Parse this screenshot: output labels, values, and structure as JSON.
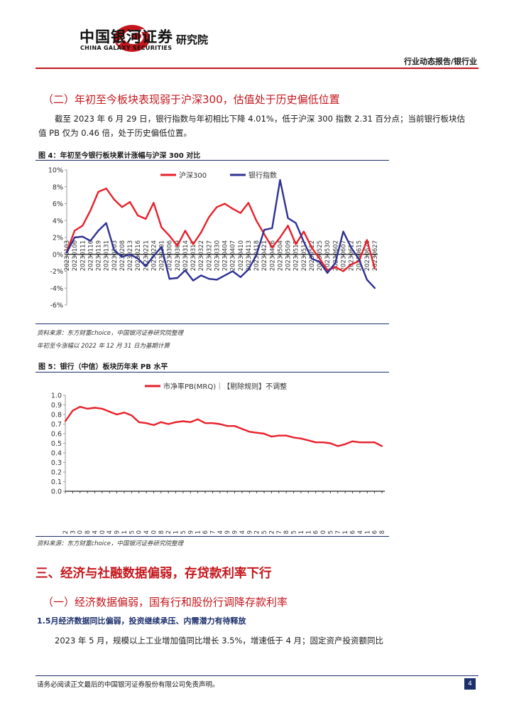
{
  "header": {
    "logo_cn": "中国银河证券",
    "logo_en": "CHINA GALAXY SECURITIES",
    "institute": "研究院",
    "report_type": "行业动态报告/银行业",
    "accent_color": "#c4161c",
    "navy_color": "#1c2f6b",
    "icon": "galaxy-logo-icon"
  },
  "section2": {
    "heading": "（二）年初至今板块表现弱于沪深300，估值处于历史偏低位置",
    "paragraph": "截至 2023 年 6 月 29 日，银行指数与年初相比下降 4.01%，低于沪深 300 指数 2.31 百分点；当前银行板块估值 PB 仅为 0.46 倍，处于历史偏低位置。"
  },
  "figure4": {
    "title": "图 4：年初至今银行板块累计涨幅与沪深 300 对比",
    "source": "资料来源：东方财富choice，中国银河证券研究院整理",
    "note": "年初至今涨幅以 2022 年 12 月 31 日为基期计算"
  },
  "figure5": {
    "title": "图 5：银行（中信）板块历年来 PB 水平",
    "source": "资料来源：东方财富choice，中国银河证券研究院整理"
  },
  "section3": {
    "heading": "三、经济与社融数据偏弱，存贷款利率下行",
    "sub_heading": "（一）经济数据偏弱，国有行和股份行调降存款利率",
    "point_heading": "1.5月经济数据同比偏弱，投资继续承压、内需潜力有待释放",
    "paragraph": "2023 年 5 月，规模以上工业增加值同比增长 3.5%，增速低于 4 月；固定资产投资额同比"
  },
  "footer": {
    "disclaimer": "请务必阅读正文最后的中国银河证券股份有限公司免责声明。",
    "page": "4"
  },
  "chart_data": [
    {
      "type": "line",
      "ylim": [
        -6,
        10
      ],
      "yticks": [
        10,
        8,
        6,
        4,
        2,
        0,
        -2,
        -4,
        -6
      ],
      "ytick_labels": [
        "10%",
        "8%",
        "6%",
        "4%",
        "2%",
        "0%",
        "-2%",
        "-4%",
        "-6%"
      ],
      "categories": [
        "20230103",
        "20230106",
        "20230111",
        "20230116",
        "20230119",
        "20230131",
        "20230203",
        "20230208",
        "20230213",
        "20230216",
        "20230221",
        "20230224",
        "20230301",
        "20230306",
        "20230309",
        "20230314",
        "20230317",
        "20230322",
        "20230327",
        "20230330",
        "20230404",
        "20230407",
        "20230410",
        "20230413",
        "20230418",
        "20230421",
        "20230426",
        "20230504",
        "20230509",
        "20230512",
        "20230517",
        "20230522",
        "20230525",
        "20230530",
        "20230602",
        "20230607",
        "20230612",
        "20230615",
        "20230620",
        "20230627"
      ],
      "series": [
        {
          "name": "沪深300",
          "color": "#e8202a",
          "values": [
            0.3,
            2.8,
            3.4,
            5.2,
            7.4,
            7.8,
            6.5,
            5.6,
            6.2,
            4.6,
            4.2,
            6.1,
            3.2,
            2.2,
            1.0,
            2.8,
            1.2,
            2.6,
            4.4,
            5.6,
            6.0,
            5.4,
            4.9,
            6.1,
            4.0,
            2.4,
            0.8,
            2.0,
            3.4,
            1.2,
            2.7,
            0.8,
            -0.5,
            -1.9,
            -1.5,
            -2.0,
            -1.2,
            -0.8,
            1.7,
            -1.7
          ]
        },
        {
          "name": "银行指数",
          "color": "#2e3192",
          "values": [
            0.2,
            2.0,
            2.1,
            1.6,
            2.8,
            3.7,
            0.5,
            -0.3,
            0.0,
            -0.5,
            -1.4,
            -0.2,
            0.9,
            -2.9,
            -2.8,
            -1.9,
            -3.1,
            -2.5,
            -2.9,
            -3.0,
            -2.5,
            -2.0,
            -2.7,
            -1.8,
            -0.1,
            2.9,
            3.1,
            8.8,
            4.3,
            3.7,
            1.5,
            -0.5,
            -0.9,
            -2.2,
            -1.0,
            2.7,
            0.8,
            -0.6,
            -3.0,
            -4.0
          ]
        }
      ]
    },
    {
      "type": "line",
      "ylim": [
        0.0,
        1.0
      ],
      "yticks": [
        1.0,
        0.9,
        0.8,
        0.7,
        0.6,
        0.5,
        0.4,
        0.3,
        0.2,
        0.1,
        0.0
      ],
      "ytick_labels": [
        "1.0",
        "0.9",
        "0.8",
        "0.7",
        "0.6",
        "0.5",
        "0.4",
        "0.3",
        "0.2",
        "0.1",
        "0.0"
      ],
      "categories": [
        "20190102",
        "20190213",
        "20190320",
        "20190428",
        "20190604",
        "20190710",
        "20190814",
        "20190919",
        "20191031",
        "20191205",
        "20200110",
        "20200224",
        "20200330",
        "20200508",
        "20200612",
        "20200721",
        "20200825",
        "20200929",
        "20201111",
        "20201216",
        "20210127",
        "20210304",
        "20210409",
        "20210519",
        "20210624",
        "20210729",
        "20210902",
        "20211015",
        "20211122",
        "20211227",
        "20220208",
        "20220315",
        "20220421",
        "20220531",
        "20220706",
        "20220810",
        "20220915",
        "20221027",
        "20221201",
        "20230106",
        "20230214",
        "20230321",
        "20230426",
        "20230608"
      ],
      "series": [
        {
          "name": "市净率PB(MRQ)｜【剔除规则】不调整",
          "color": "#e8202a",
          "values": [
            0.73,
            0.84,
            0.88,
            0.86,
            0.87,
            0.86,
            0.83,
            0.8,
            0.82,
            0.79,
            0.72,
            0.71,
            0.69,
            0.72,
            0.7,
            0.72,
            0.73,
            0.72,
            0.75,
            0.71,
            0.71,
            0.7,
            0.68,
            0.68,
            0.65,
            0.62,
            0.61,
            0.6,
            0.57,
            0.58,
            0.58,
            0.56,
            0.55,
            0.53,
            0.51,
            0.51,
            0.5,
            0.47,
            0.49,
            0.52,
            0.51,
            0.51,
            0.51,
            0.47
          ]
        }
      ]
    }
  ]
}
